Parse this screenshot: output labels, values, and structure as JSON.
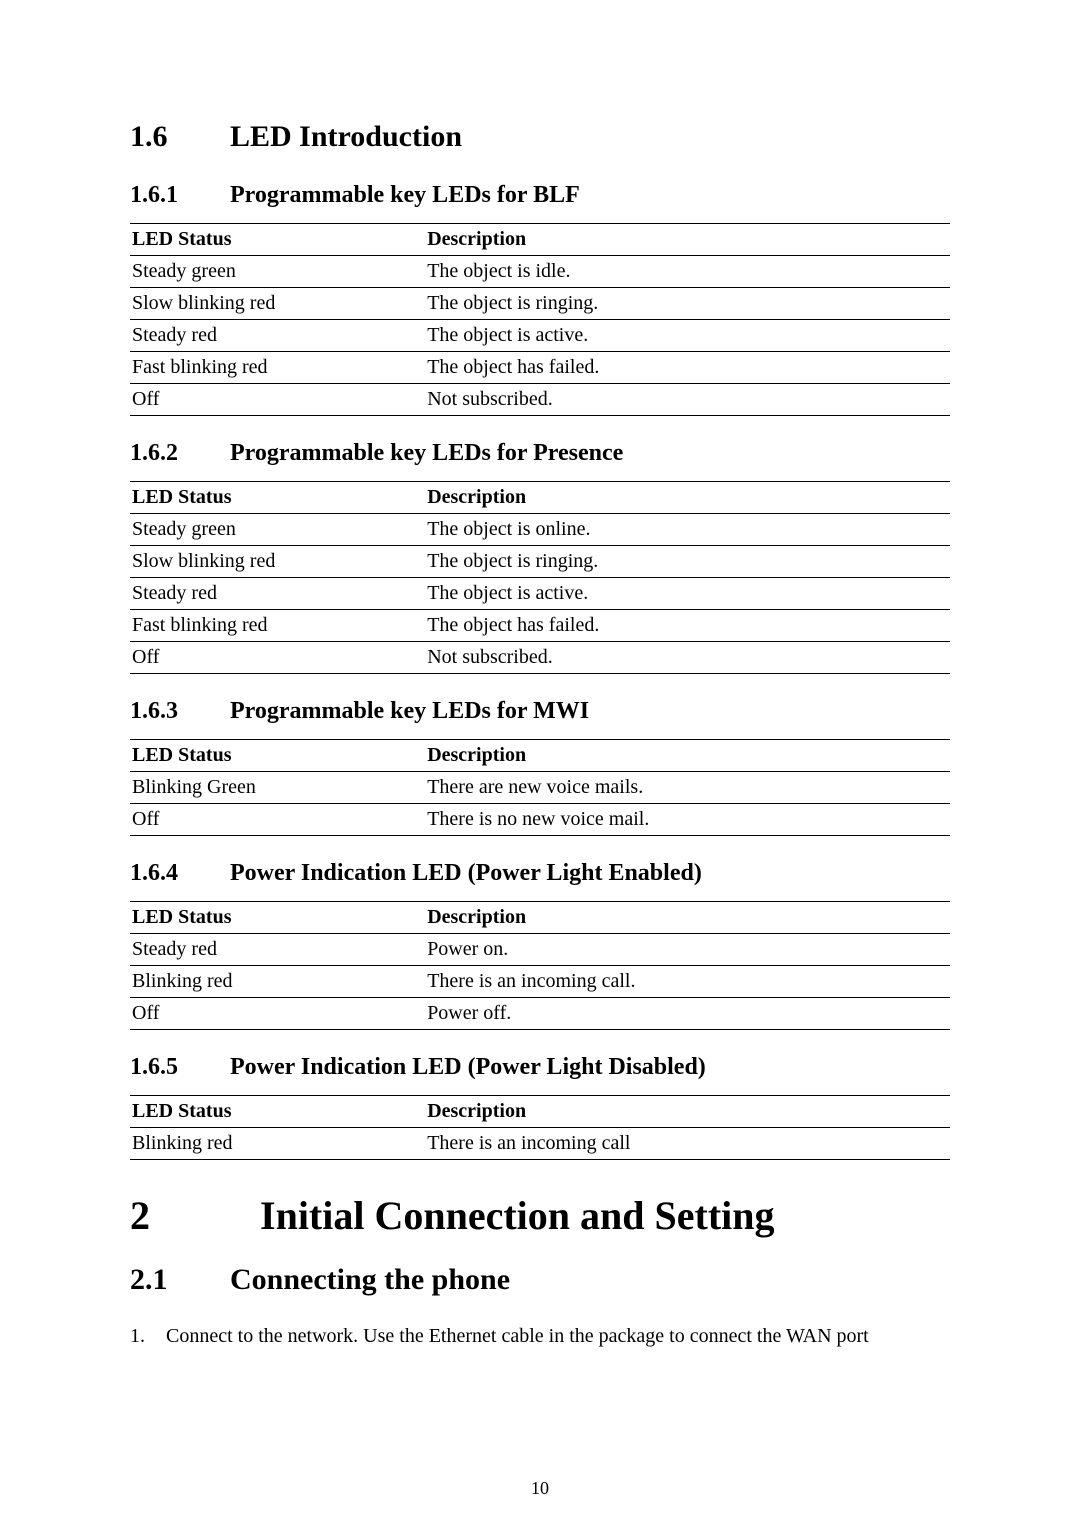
{
  "colors": {
    "text": "#000000",
    "background": "#ffffff",
    "border": "#000000"
  },
  "typography": {
    "body_font": "Times New Roman",
    "body_size_pt": 12,
    "h1_size_pt": 24,
    "h2_size_pt": 18,
    "h3_size_pt": 14
  },
  "section_1_6": {
    "number": "1.6",
    "title": "LED Introduction"
  },
  "section_1_6_1": {
    "number": "1.6.1",
    "title": "Programmable key LEDs for BLF",
    "table": {
      "col_status": "LED Status",
      "col_desc": "Description",
      "rows": [
        {
          "status": "Steady green",
          "desc": "The object is idle."
        },
        {
          "status": "Slow blinking red",
          "desc": "The object is ringing."
        },
        {
          "status": "Steady red",
          "desc": "The object is active."
        },
        {
          "status": "Fast blinking red",
          "desc": "The object has failed."
        },
        {
          "status": "Off",
          "desc": "Not subscribed."
        }
      ]
    }
  },
  "section_1_6_2": {
    "number": "1.6.2",
    "title": "Programmable key LEDs for Presence",
    "table": {
      "col_status": "LED Status",
      "col_desc": "Description",
      "rows": [
        {
          "status": "Steady green",
          "desc": "The object is online."
        },
        {
          "status": "Slow blinking red",
          "desc": "The object is ringing."
        },
        {
          "status": "Steady red",
          "desc": "The object is active."
        },
        {
          "status": "Fast blinking red",
          "desc": "The object has failed."
        },
        {
          "status": "Off",
          "desc": "Not subscribed."
        }
      ]
    }
  },
  "section_1_6_3": {
    "number": "1.6.3",
    "title": "Programmable key LEDs for MWI",
    "table": {
      "col_status": "LED Status",
      "col_desc": "Description",
      "rows": [
        {
          "status": "Blinking Green",
          "desc": "There are new voice mails."
        },
        {
          "status": "Off",
          "desc": "There is no new voice mail."
        }
      ]
    }
  },
  "section_1_6_4": {
    "number": "1.6.4",
    "title": "Power Indication LED (Power Light Enabled)",
    "table": {
      "col_status": "LED Status",
      "col_desc": "Description",
      "rows": [
        {
          "status": "Steady red",
          "desc": "Power on."
        },
        {
          "status": "Blinking red",
          "desc": "There is an incoming call."
        },
        {
          "status": "Off",
          "desc": "Power off."
        }
      ]
    }
  },
  "section_1_6_5": {
    "number": "1.6.5",
    "title": "Power Indication LED (Power Light Disabled)",
    "table": {
      "col_status": "LED Status",
      "col_desc": "Description",
      "rows": [
        {
          "status": "Blinking red",
          "desc": "There is an incoming call"
        }
      ]
    }
  },
  "chapter_2": {
    "number": "2",
    "title": "Initial Connection and Setting"
  },
  "section_2_1": {
    "number": "2.1",
    "title": "Connecting the phone",
    "list_item_1_marker": "1.",
    "list_item_1_text": "Connect to the network. Use the Ethernet cable in the package to connect the WAN port"
  },
  "page_number": "10"
}
